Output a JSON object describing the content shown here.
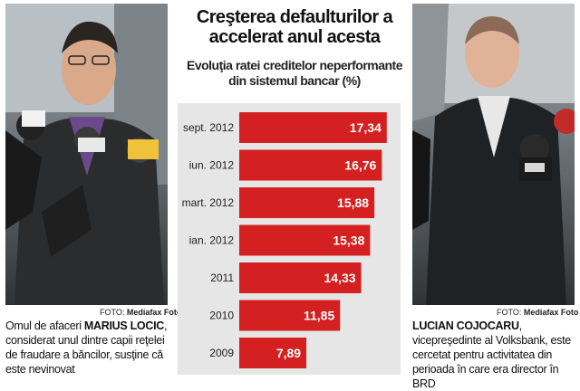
{
  "chart_data": {
    "type": "bar",
    "orientation": "horizontal",
    "title": "Creşterea defaulturilor a accelerat anul acesta",
    "subtitle": "Evoluţia ratei creditelor neperformante din sistemul bancar (%)",
    "categories": [
      "sept. 2012",
      "iun. 2012",
      "mart. 2012",
      "ian. 2012",
      "2011",
      "2010",
      "2009"
    ],
    "values": [
      17.34,
      16.76,
      15.88,
      15.38,
      14.33,
      11.85,
      7.89
    ],
    "value_labels": [
      "17,34",
      "16,76",
      "15,88",
      "15,38",
      "14,33",
      "11,85",
      "7,89"
    ],
    "xlim": [
      0,
      18
    ],
    "grid": false,
    "legend": "none",
    "bar_color": "#d42020",
    "background_color": "#e6e6e6"
  },
  "left_photo": {
    "credit_prefix": "FOTO: ",
    "credit_source": "Mediafax Foto",
    "caption_pre": "Omul de afaceri ",
    "caption_name": "MARIUS LOCIC",
    "caption_post": ", considerat unul dintre capii reţelei de fraudare a băncilor, susţine că este nevinovat"
  },
  "right_photo": {
    "credit_prefix": "FOTO: ",
    "credit_source": "Mediafax Foto",
    "caption_name": "LUCIAN COJOCARU",
    "caption_post": ", vicepreşedinte al Volksbank, este cercetat pentru activitatea din perioada în care era director în BRD"
  }
}
